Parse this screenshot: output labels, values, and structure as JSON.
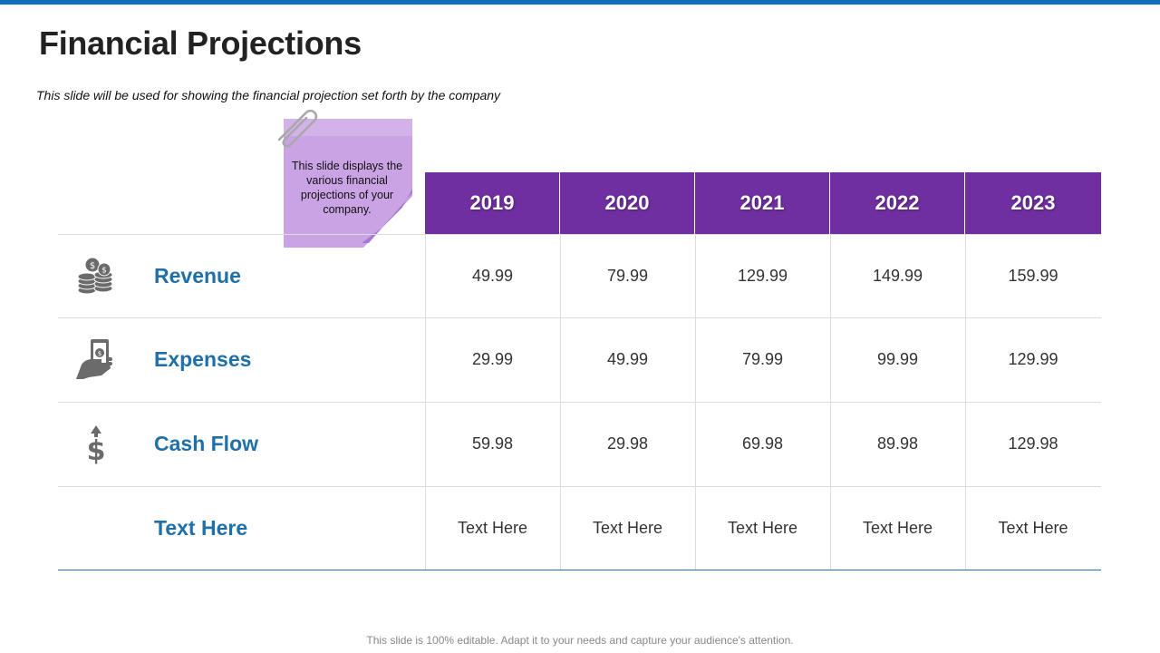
{
  "slide": {
    "title": "Financial Projections",
    "subtitle": "This slide will  be used for showing  the financial projection set forth by the company",
    "note_text": "This slide displays the various financial projections of your company.",
    "footer": "This slide is 100% editable. Adapt it to your needs and capture your audience's attention."
  },
  "colors": {
    "accent_top_bar": "#0e6fbb",
    "header_fill": "#6f2fa0",
    "row_label": "#1f6fa8",
    "note": "#c9a3e3"
  },
  "table": {
    "years": [
      "2019",
      "2020",
      "2021",
      "2022",
      "2023"
    ],
    "rows": [
      {
        "label": "Revenue",
        "icon": "coins-icon",
        "values": [
          "49.99",
          "79.99",
          "129.99",
          "149.99",
          "159.99"
        ]
      },
      {
        "label": "Expenses",
        "icon": "hand-money-icon",
        "values": [
          "29.99",
          "49.99",
          "79.99",
          "99.99",
          "129.99"
        ]
      },
      {
        "label": "Cash Flow",
        "icon": "dollar-arrow-icon",
        "values": [
          "59.98",
          "29.98",
          "69.98",
          "89.98",
          "129.98"
        ]
      },
      {
        "label": "Text Here",
        "icon": "",
        "values": [
          "Text Here",
          "Text Here",
          "Text Here",
          "Text Here",
          "Text Here"
        ]
      }
    ]
  }
}
